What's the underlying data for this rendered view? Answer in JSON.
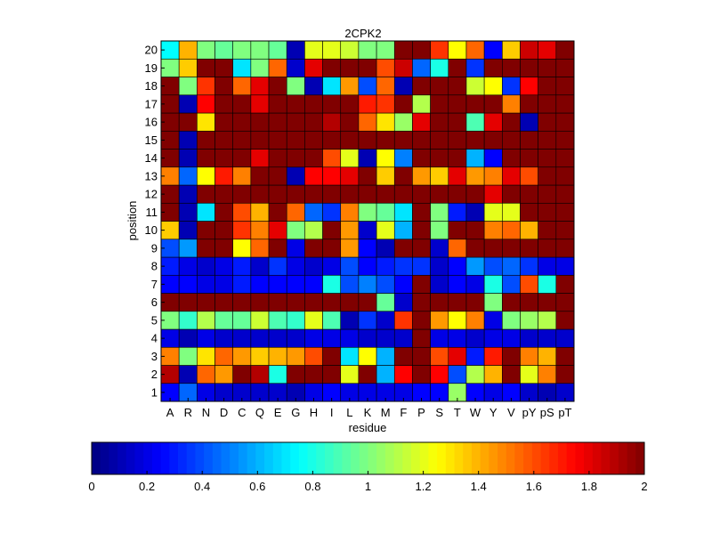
{
  "chart_data": {
    "type": "heatmap",
    "title": "2CPK2",
    "xlabel": "residue",
    "ylabel": "position",
    "colormap": "jet",
    "colorbar": {
      "placement": "bottom",
      "range": [
        0,
        2
      ],
      "ticks": [
        "0",
        "0.2",
        "0.4",
        "0.6",
        "0.8",
        "1",
        "1.2",
        "1.4",
        "1.6",
        "1.8",
        "2"
      ]
    },
    "x": [
      "A",
      "R",
      "N",
      "D",
      "C",
      "Q",
      "E",
      "G",
      "H",
      "I",
      "L",
      "K",
      "M",
      "F",
      "P",
      "S",
      "T",
      "W",
      "Y",
      "V",
      "pY",
      "pS",
      "pT"
    ],
    "y": [
      "1",
      "2",
      "3",
      "4",
      "5",
      "6",
      "7",
      "8",
      "9",
      "10",
      "11",
      "12",
      "13",
      "14",
      "15",
      "16",
      "17",
      "18",
      "19",
      "20"
    ],
    "values": [
      [
        0.25,
        0.45,
        0.2,
        0.15,
        0.15,
        0.15,
        0.15,
        0.1,
        0.2,
        0.25,
        0.2,
        0.2,
        0.2,
        0.2,
        0.25,
        0.25,
        1.05,
        0.25,
        0.2,
        0.25,
        0.15,
        0.1,
        0.15
      ],
      [
        1.9,
        0.1,
        1.55,
        1.45,
        2.0,
        1.9,
        0.8,
        2.0,
        2.0,
        2.0,
        1.2,
        2.0,
        0.6,
        1.75,
        2.0,
        1.75,
        0.4,
        1.1,
        1.4,
        2.0,
        1.2,
        1.5,
        2.0
      ],
      [
        1.5,
        1.0,
        1.3,
        1.55,
        1.45,
        1.35,
        1.4,
        1.45,
        1.6,
        2.0,
        0.7,
        1.25,
        0.6,
        2.0,
        2.0,
        1.6,
        1.8,
        0.3,
        1.7,
        2.0,
        1.5,
        1.4,
        2.0
      ],
      [
        0.2,
        0.1,
        0.2,
        0.15,
        0.15,
        0.15,
        0.15,
        0.15,
        0.2,
        0.2,
        0.2,
        0.15,
        0.15,
        0.15,
        2.0,
        0.2,
        0.2,
        0.15,
        0.2,
        0.2,
        0.15,
        0.15,
        0.15
      ],
      [
        1.0,
        0.85,
        1.1,
        0.95,
        0.95,
        1.15,
        0.9,
        0.85,
        1.2,
        0.9,
        0.1,
        0.35,
        0.15,
        1.65,
        2.0,
        1.45,
        1.25,
        1.5,
        0.2,
        1.0,
        1.05,
        1.1,
        2.0
      ],
      [
        2.0,
        2.0,
        2.0,
        2.0,
        2.0,
        2.0,
        2.0,
        2.0,
        2.0,
        2.0,
        2.0,
        2.0,
        0.95,
        0.15,
        2.0,
        2.0,
        2.0,
        2.0,
        1.0,
        2.0,
        2.0,
        2.0,
        2.0
      ],
      [
        0.25,
        0.25,
        0.2,
        0.2,
        0.3,
        0.25,
        0.25,
        0.25,
        0.25,
        0.8,
        0.4,
        0.5,
        0.4,
        0.25,
        2.0,
        0.15,
        0.25,
        0.2,
        0.8,
        0.4,
        1.6,
        0.8,
        2.0
      ],
      [
        0.3,
        0.2,
        0.15,
        0.2,
        0.3,
        0.15,
        0.35,
        0.2,
        0.15,
        0.2,
        0.4,
        0.25,
        0.3,
        0.35,
        0.35,
        0.15,
        0.25,
        0.55,
        0.4,
        0.45,
        0.35,
        0.2,
        0.2
      ],
      [
        0.4,
        0.55,
        2.0,
        2.0,
        1.25,
        1.55,
        2.0,
        0.2,
        2.0,
        2.0,
        1.45,
        0.25,
        0.1,
        2.0,
        2.0,
        0.15,
        1.55,
        2.0,
        2.0,
        2.0,
        2.0,
        2.0,
        2.0
      ],
      [
        1.35,
        0.1,
        2.0,
        2.0,
        1.65,
        1.5,
        1.8,
        1.0,
        1.1,
        2.0,
        1.45,
        0.15,
        1.2,
        0.6,
        2.0,
        1.0,
        2.0,
        2.0,
        1.5,
        1.55,
        1.4,
        2.0,
        2.0
      ],
      [
        2.0,
        0.1,
        0.7,
        2.0,
        1.6,
        1.4,
        2.0,
        1.55,
        0.45,
        0.35,
        1.5,
        1.0,
        0.95,
        0.7,
        2.0,
        1.0,
        0.3,
        0.1,
        1.2,
        1.2,
        2.0,
        2.0,
        2.0
      ],
      [
        2.0,
        0.1,
        2.0,
        2.0,
        2.0,
        2.0,
        2.0,
        2.0,
        2.0,
        2.0,
        2.0,
        2.0,
        2.0,
        2.0,
        2.0,
        2.0,
        2.0,
        2.0,
        1.8,
        2.0,
        2.0,
        2.0,
        2.0
      ],
      [
        1.5,
        0.45,
        1.25,
        1.7,
        1.5,
        2.0,
        2.0,
        0.1,
        1.75,
        1.75,
        1.8,
        2.0,
        1.35,
        2.0,
        1.45,
        1.35,
        1.8,
        1.45,
        1.5,
        1.8,
        1.6,
        2.0,
        2.0
      ],
      [
        2.0,
        0.1,
        2.0,
        2.0,
        2.0,
        1.8,
        2.0,
        2.0,
        2.0,
        1.6,
        1.2,
        0.1,
        1.25,
        0.5,
        2.0,
        2.0,
        2.0,
        0.6,
        0.25,
        2.0,
        2.0,
        2.0,
        2.0
      ],
      [
        2.0,
        0.1,
        2.0,
        2.0,
        2.0,
        2.0,
        2.0,
        2.0,
        2.0,
        2.0,
        2.0,
        2.0,
        2.0,
        2.0,
        2.0,
        2.0,
        2.0,
        2.0,
        2.0,
        2.0,
        2.0,
        2.0,
        2.0
      ],
      [
        2.0,
        2.0,
        1.3,
        2.0,
        2.0,
        2.0,
        2.0,
        2.0,
        2.0,
        1.9,
        2.0,
        1.55,
        1.3,
        1.05,
        1.8,
        2.0,
        2.0,
        0.9,
        1.8,
        2.0,
        0.1,
        2.0,
        2.0
      ],
      [
        2.0,
        0.1,
        1.75,
        2.0,
        2.0,
        1.8,
        2.0,
        2.0,
        2.0,
        2.0,
        2.0,
        1.7,
        1.65,
        2.0,
        1.1,
        2.0,
        2.0,
        2.0,
        2.0,
        1.5,
        2.0,
        2.0,
        2.0
      ],
      [
        2.0,
        1.0,
        1.65,
        2.0,
        1.55,
        1.8,
        2.0,
        1.0,
        0.1,
        0.7,
        1.45,
        0.4,
        1.55,
        0.1,
        2.0,
        2.0,
        2.0,
        1.15,
        1.25,
        0.35,
        1.75,
        2.0,
        2.0
      ],
      [
        1.0,
        1.35,
        2.0,
        2.0,
        0.7,
        1.0,
        1.55,
        0.15,
        1.8,
        2.0,
        2.0,
        2.0,
        1.6,
        1.85,
        0.45,
        0.8,
        2.0,
        0.35,
        2.0,
        2.0,
        2.0,
        2.0,
        2.0
      ],
      [
        0.75,
        1.4,
        1.0,
        0.95,
        1.0,
        1.0,
        0.95,
        0.1,
        1.2,
        1.2,
        1.15,
        1.0,
        1.0,
        2.0,
        2.0,
        1.65,
        1.25,
        1.55,
        0.25,
        1.35,
        1.85,
        1.8,
        2.0
      ]
    ]
  }
}
